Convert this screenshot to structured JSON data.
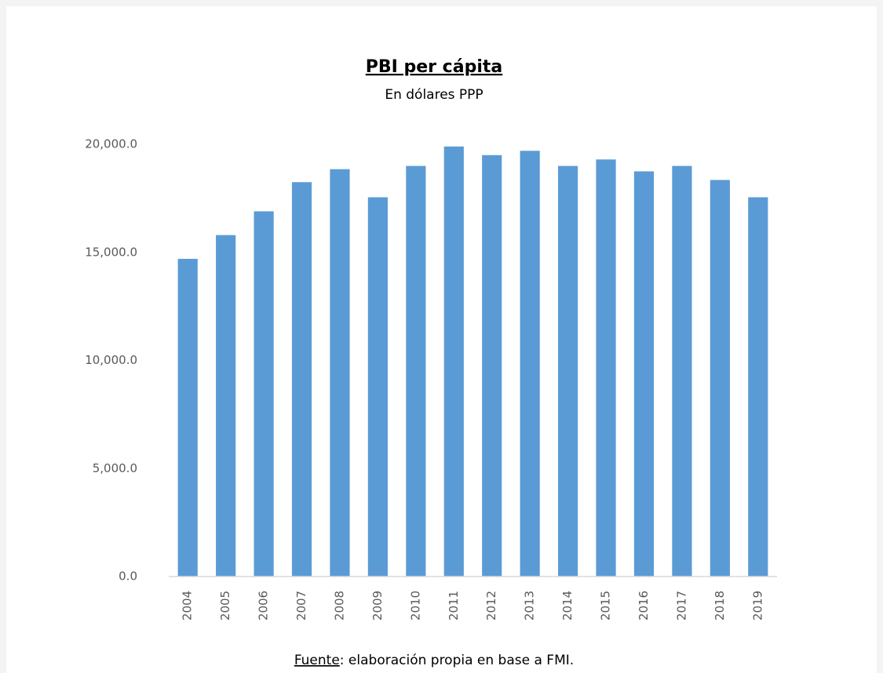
{
  "chart_data": {
    "type": "bar",
    "title": "PBI per cápita",
    "subtitle": "En dólares PPP",
    "categories": [
      "2004",
      "2005",
      "2006",
      "2007",
      "2008",
      "2009",
      "2010",
      "2011",
      "2012",
      "2013",
      "2014",
      "2015",
      "2016",
      "2017",
      "2018",
      "2019"
    ],
    "values": [
      14700,
      15800,
      16900,
      18250,
      18850,
      17550,
      19000,
      19900,
      19500,
      19700,
      19000,
      19300,
      18750,
      19000,
      18350,
      17550
    ],
    "color": "#5b9bd5",
    "ylim": [
      0,
      20000
    ],
    "yticks": [
      {
        "value": 0,
        "label": "0.0"
      },
      {
        "value": 5000,
        "label": "5,000.0"
      },
      {
        "value": 10000,
        "label": "10,000.0"
      },
      {
        "value": 15000,
        "label": "15,000.0"
      },
      {
        "value": 20000,
        "label": "20,000.0"
      }
    ],
    "grid": false,
    "source": {
      "label": "Fuente",
      "text": ": elaboración propia en base a FMI."
    }
  }
}
